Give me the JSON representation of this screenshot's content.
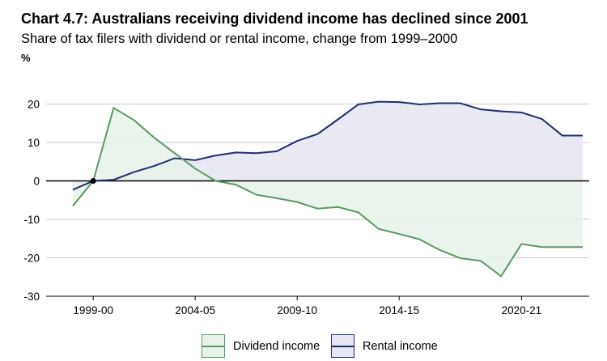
{
  "title": "Chart 4.7: Australians receiving dividend income has declined since 2001",
  "subtitle": "Share of tax filers with dividend or rental income, change from 1999–2000",
  "unit_label": "%",
  "colors": {
    "dividend_line": "#5a9a63",
    "dividend_fill": "#e8f2e9",
    "rental_line": "#1f2d6e",
    "rental_fill": "#e6e7f2",
    "grid": "#c8c8c8",
    "zero_line": "#000000"
  },
  "legend": {
    "dividend_label": "Dividend income",
    "rental_label": "Rental income"
  },
  "chart_data": {
    "type": "area",
    "title": "Chart 4.7: Australians receiving dividend income has declined since 2001",
    "subtitle": "Share of tax filers with dividend or rental income, change from 1999–2000",
    "ylabel": "%",
    "xlabel": "",
    "ylim": [
      -30,
      25
    ],
    "yticks": [
      20,
      10,
      0,
      -10,
      -20,
      -30
    ],
    "xtick_labels": [
      "1999-00",
      "2004-05",
      "2009-10",
      "2014-15",
      "2020-21"
    ],
    "grid": "horizontal",
    "legend_position": "bottom",
    "x": [
      "1998-99",
      "1999-00",
      "2000-01",
      "2001-02",
      "2002-03",
      "2003-04",
      "2004-05",
      "2005-06",
      "2006-07",
      "2007-08",
      "2008-09",
      "2009-10",
      "2010-11",
      "2011-12",
      "2012-13",
      "2013-14",
      "2014-15",
      "2015-16",
      "2016-17",
      "2017-18",
      "2018-19",
      "2019-20",
      "2020-21",
      "2021-22",
      "2022-23",
      "2023-24"
    ],
    "series": [
      {
        "name": "Dividend income",
        "values": [
          -6.5,
          0,
          19,
          15.8,
          11.2,
          7.2,
          3.2,
          0,
          -1,
          -3.6,
          -4.5,
          -5.5,
          -7.2,
          -6.8,
          -8.2,
          -12.5,
          -13.8,
          -15.2,
          -18,
          -20.1,
          -20.8,
          -24.8,
          -16.4,
          -17.2,
          -17.2,
          -17.2
        ]
      },
      {
        "name": "Rental income",
        "values": [
          -2.3,
          0,
          0.3,
          2.3,
          3.9,
          5.9,
          5.4,
          6.6,
          7.4,
          7.2,
          7.7,
          10.4,
          12.2,
          16,
          19.9,
          20.6,
          20.5,
          19.9,
          20.2,
          20.2,
          18.6,
          18.1,
          17.8,
          16.1,
          11.8,
          11.8
        ]
      }
    ]
  }
}
